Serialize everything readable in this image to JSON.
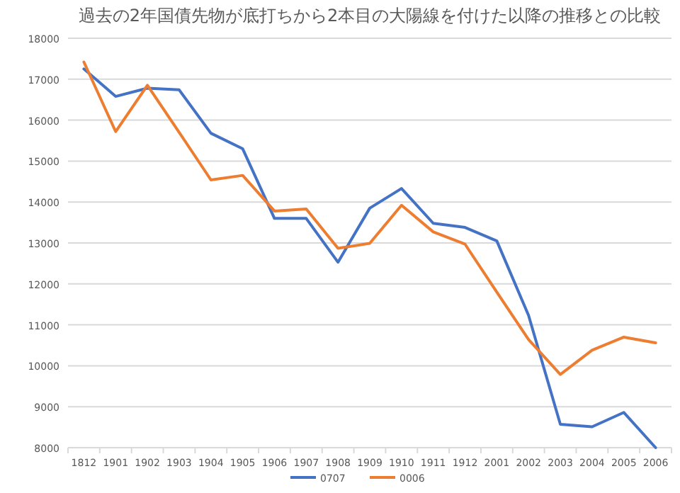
{
  "chart_data": {
    "type": "line",
    "title": "過去の2年国債先物が底打ちから2本目の大陽線を付けた以降の推移との比較",
    "categories": [
      "1812",
      "1901",
      "1902",
      "1903",
      "1904",
      "1905",
      "1906",
      "1907",
      "1908",
      "1909",
      "1910",
      "1911",
      "1912",
      "2001",
      "2002",
      "2003",
      "2004",
      "2005",
      "2006"
    ],
    "series": [
      {
        "name": "0707",
        "color": "#4472c4",
        "values": [
          17250,
          16580,
          16780,
          16740,
          15680,
          15300,
          13600,
          13600,
          12530,
          13850,
          14330,
          13480,
          13380,
          13050,
          11230,
          8570,
          8510,
          8860,
          8000
        ]
      },
      {
        "name": "0006",
        "color": "#ed7d31",
        "values": [
          17420,
          15720,
          16850,
          15700,
          14540,
          14650,
          13780,
          13830,
          12870,
          12990,
          13920,
          13270,
          12970,
          11800,
          10640,
          9790,
          10380,
          10700,
          10560
        ]
      }
    ],
    "ylim": [
      8000,
      18000
    ],
    "yticks": [
      8000,
      9000,
      10000,
      11000,
      12000,
      13000,
      14000,
      15000,
      16000,
      17000,
      18000
    ],
    "grid": "y",
    "legend": "bottom",
    "marker": "none",
    "line_style": "solid"
  }
}
